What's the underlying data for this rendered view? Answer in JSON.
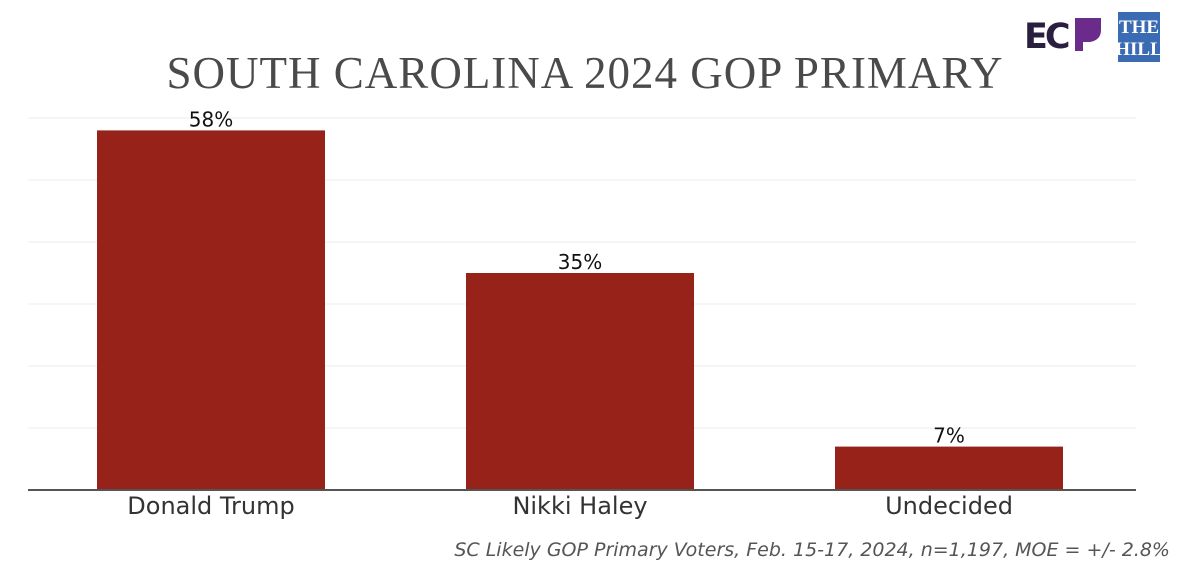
{
  "logos": {
    "ecp_text": "EC",
    "hill_line1": "THE",
    "hill_line2": "HILL",
    "ecp_color": "#2b1f3f",
    "ecp_accent": "#6a2b8a",
    "hill_color": "#3b6bb3"
  },
  "chart_data": {
    "type": "bar",
    "title": "SOUTH CAROLINA 2024 GOP PRIMARY",
    "categories": [
      "Donald Trump",
      "Nikki Haley",
      "Undecided"
    ],
    "values": [
      58,
      35,
      7
    ],
    "data_labels": [
      "58%",
      "35%",
      "7%"
    ],
    "ylim": [
      0,
      60
    ],
    "grid": true,
    "xlabel": "",
    "ylabel": "",
    "bar_color": "#962219",
    "source": "SC Likely GOP Primary Voters, Feb. 15-17, 2024, n=1,197, MOE = +/- 2.8%"
  }
}
